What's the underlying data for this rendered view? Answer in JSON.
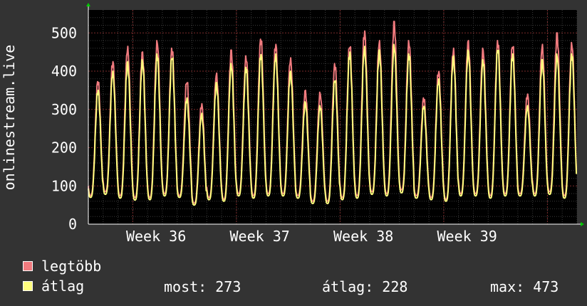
{
  "chart_data": {
    "type": "line",
    "ylabel": "onlinestream.live",
    "ylim": [
      0,
      560
    ],
    "yticks": [
      0,
      100,
      200,
      300,
      400,
      500
    ],
    "x_tick_labels": [
      "Week 36",
      "Week 37",
      "Week 38",
      "Week 39"
    ],
    "grid": true,
    "legend_position": "bottom",
    "series": [
      {
        "name": "legtöbb",
        "color": "#f07a7e",
        "daily_peaks": [
          375,
          425,
          465,
          450,
          480,
          460,
          375,
          315,
          395,
          455,
          440,
          485,
          470,
          435,
          350,
          345,
          420,
          470,
          505,
          480,
          530,
          480,
          330,
          400,
          460,
          480,
          460,
          480,
          470,
          340,
          470,
          500,
          475
        ],
        "daily_troughs": [
          75,
          85,
          75,
          70,
          70,
          80,
          75,
          55,
          70,
          65,
          80,
          75,
          80,
          80,
          75,
          60,
          60,
          70,
          75,
          85,
          80,
          90,
          75,
          70,
          65,
          80,
          80,
          75,
          80,
          80,
          80,
          85,
          75
        ]
      },
      {
        "name": "átlag",
        "color": "#fffd7e",
        "daily_peaks": [
          350,
          400,
          425,
          430,
          445,
          440,
          330,
          290,
          370,
          420,
          410,
          445,
          445,
          400,
          320,
          310,
          380,
          450,
          465,
          455,
          470,
          445,
          310,
          380,
          440,
          455,
          430,
          460,
          445,
          310,
          430,
          445,
          445
        ],
        "daily_troughs": [
          70,
          78,
          68,
          63,
          64,
          74,
          70,
          50,
          64,
          60,
          74,
          68,
          74,
          74,
          68,
          54,
          54,
          64,
          68,
          78,
          74,
          82,
          68,
          64,
          60,
          74,
          74,
          68,
          74,
          74,
          74,
          78,
          68
        ]
      }
    ],
    "legend": [
      {
        "name": "legtöbb",
        "color": "#f07a7e"
      },
      {
        "name": "átlag",
        "color": "#fffd7e"
      }
    ],
    "stats": {
      "most_label": "most:",
      "most_value": "273",
      "atlag_label": "átlag:",
      "atlag_value": "228",
      "max_label": "max:",
      "max_value": "473"
    }
  }
}
